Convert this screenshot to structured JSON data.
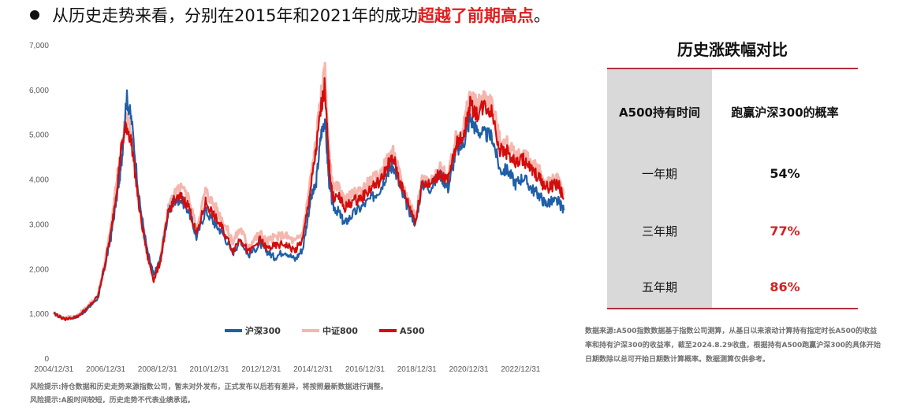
{
  "headline": {
    "prefix": "从历史走势来看，分别在2015年和2021年的成功",
    "highlight": "超越了前期高点",
    "suffix": "。",
    "highlight_color": "#e11d1d"
  },
  "chart_data": {
    "type": "line",
    "x_ticks": [
      "2004/12/31",
      "2006/12/31",
      "2008/12/31",
      "2010/12/31",
      "2012/12/31",
      "2014/12/31",
      "2016/12/31",
      "2018/12/31",
      "2020/12/31",
      "2022/12/31"
    ],
    "x_range": [
      2004.99,
      2024.66
    ],
    "y_ticks": [
      "0",
      "1,000",
      "2,000",
      "3,000",
      "4,000",
      "5,000",
      "6,000",
      "7,000"
    ],
    "ylim": [
      0,
      7000
    ],
    "legend_position": "bottom-center",
    "series": [
      {
        "name": "沪深300",
        "color": "#1f5fa8",
        "x": [
          2005.0,
          2005.4,
          2005.9,
          2006.3,
          2006.7,
          2006.95,
          2007.2,
          2007.45,
          2007.6,
          2007.8,
          2008.0,
          2008.3,
          2008.6,
          2008.85,
          2009.1,
          2009.4,
          2009.6,
          2009.9,
          2010.2,
          2010.5,
          2010.85,
          2011.2,
          2011.5,
          2011.9,
          2012.2,
          2012.5,
          2012.95,
          2013.2,
          2013.5,
          2013.9,
          2014.3,
          2014.6,
          2014.9,
          2015.1,
          2015.3,
          2015.45,
          2015.6,
          2015.75,
          2016.0,
          2016.2,
          2016.5,
          2016.9,
          2017.3,
          2017.6,
          2017.9,
          2018.1,
          2018.4,
          2018.7,
          2018.95,
          2019.2,
          2019.5,
          2019.9,
          2020.2,
          2020.5,
          2020.8,
          2021.05,
          2021.3,
          2021.6,
          2021.9,
          2022.2,
          2022.5,
          2022.8,
          2023.1,
          2023.4,
          2023.7,
          2023.95,
          2024.2,
          2024.45,
          2024.66
        ],
        "y": [
          1000,
          880,
          920,
          1100,
          1350,
          2000,
          2700,
          3700,
          4300,
          5850,
          5300,
          3500,
          2400,
          1850,
          2200,
          3200,
          3500,
          3550,
          3300,
          2700,
          3300,
          3000,
          2800,
          2350,
          2650,
          2300,
          2550,
          2400,
          2250,
          2400,
          2200,
          2450,
          3550,
          3850,
          5000,
          5350,
          4000,
          3400,
          3250,
          3000,
          3200,
          3400,
          3600,
          3800,
          4200,
          4300,
          3700,
          3300,
          3000,
          3900,
          3800,
          4100,
          3800,
          4600,
          4800,
          5350,
          5100,
          5000,
          4950,
          4200,
          4200,
          3900,
          4050,
          3800,
          3650,
          3450,
          3500,
          3500,
          3300
        ]
      },
      {
        "name": "中证800",
        "color": "#f4b6ad",
        "x": [
          2005.0,
          2005.4,
          2005.9,
          2006.3,
          2006.7,
          2006.95,
          2007.2,
          2007.45,
          2007.6,
          2007.8,
          2008.0,
          2008.3,
          2008.6,
          2008.85,
          2009.1,
          2009.4,
          2009.6,
          2009.9,
          2010.2,
          2010.5,
          2010.85,
          2011.2,
          2011.5,
          2011.9,
          2012.2,
          2012.5,
          2012.95,
          2013.2,
          2013.5,
          2013.9,
          2014.3,
          2014.6,
          2014.9,
          2015.1,
          2015.3,
          2015.45,
          2015.6,
          2015.75,
          2016.0,
          2016.2,
          2016.5,
          2016.9,
          2017.3,
          2017.6,
          2017.9,
          2018.1,
          2018.4,
          2018.7,
          2018.95,
          2019.2,
          2019.5,
          2019.9,
          2020.2,
          2020.5,
          2020.8,
          2021.05,
          2021.3,
          2021.6,
          2021.9,
          2022.2,
          2022.5,
          2022.8,
          2023.1,
          2023.4,
          2023.7,
          2023.95,
          2024.2,
          2024.45,
          2024.66
        ],
        "y": [
          1000,
          900,
          950,
          1150,
          1400,
          2100,
          2900,
          4100,
          4600,
          5500,
          5000,
          3400,
          2350,
          1800,
          2200,
          3300,
          3650,
          3800,
          3600,
          2900,
          3750,
          3400,
          3100,
          2600,
          2900,
          2500,
          2800,
          2600,
          2700,
          2750,
          2600,
          2800,
          4000,
          4800,
          5900,
          6400,
          4600,
          3800,
          3800,
          3500,
          3650,
          3800,
          4000,
          4100,
          4500,
          4600,
          3950,
          3500,
          3150,
          4000,
          3900,
          4250,
          4050,
          4900,
          5200,
          5900,
          5650,
          5850,
          5700,
          4850,
          4800,
          4500,
          4600,
          4350,
          4200,
          3900,
          3950,
          4000,
          3650
        ]
      },
      {
        "name": "A500",
        "color": "#d40c0c",
        "x": [
          2005.0,
          2005.4,
          2005.9,
          2006.3,
          2006.7,
          2006.95,
          2007.2,
          2007.45,
          2007.6,
          2007.8,
          2008.0,
          2008.3,
          2008.6,
          2008.85,
          2009.1,
          2009.4,
          2009.6,
          2009.9,
          2010.2,
          2010.5,
          2010.85,
          2011.2,
          2011.5,
          2011.9,
          2012.2,
          2012.5,
          2012.95,
          2013.2,
          2013.5,
          2013.9,
          2014.3,
          2014.6,
          2014.9,
          2015.1,
          2015.3,
          2015.45,
          2015.6,
          2015.75,
          2016.0,
          2016.2,
          2016.5,
          2016.9,
          2017.3,
          2017.6,
          2017.9,
          2018.1,
          2018.4,
          2018.7,
          2018.95,
          2019.2,
          2019.5,
          2019.9,
          2020.2,
          2020.5,
          2020.8,
          2021.05,
          2021.3,
          2021.6,
          2021.9,
          2022.2,
          2022.5,
          2022.8,
          2023.1,
          2023.4,
          2023.7,
          2023.95,
          2024.2,
          2024.45,
          2024.66
        ],
        "y": [
          1000,
          870,
          930,
          1120,
          1380,
          2050,
          2800,
          3900,
          4700,
          5200,
          4800,
          3300,
          2300,
          1750,
          2150,
          3200,
          3500,
          3600,
          3400,
          2750,
          3500,
          3150,
          2900,
          2400,
          2700,
          2350,
          2650,
          2450,
          2500,
          2550,
          2400,
          2650,
          3800,
          4600,
          5600,
          6100,
          4350,
          3600,
          3600,
          3350,
          3500,
          3600,
          3850,
          3950,
          4350,
          4450,
          3850,
          3400,
          3050,
          3950,
          3850,
          4150,
          3950,
          4750,
          5000,
          5650,
          5450,
          5650,
          5500,
          4650,
          4600,
          4350,
          4450,
          4200,
          4050,
          3800,
          3850,
          3900,
          3550
        ]
      }
    ]
  },
  "table": {
    "title": "历史涨跌幅对比",
    "header": [
      "A500持有时间",
      "跑赢沪深300的概率"
    ],
    "rows": [
      {
        "period": "一年期",
        "prob": "54%",
        "color": "#111111"
      },
      {
        "period": "三年期",
        "prob": "77%",
        "color": "#d42020"
      },
      {
        "period": "五年期",
        "prob": "86%",
        "color": "#d42020"
      }
    ]
  },
  "source_note": "数据来源:A500指数数据基于指数公司测算，从基日以来滚动计算持有指定时长A500的收益率和持有沪深300的收益率，截至2024.8.29收盘，根据持有A500跑赢沪深300的具体开始日期数除以总可开始日期数计算概率。数据测算仅供参考。",
  "risk_notes": [
    "风险提示:持仓数据和历史走势来源指数公司，暂未对外发布，正式发布以后若有差异，将按照最新数据进行调整。",
    "风险提示:A股时间较短，历史走势不代表业绩承诺。"
  ]
}
